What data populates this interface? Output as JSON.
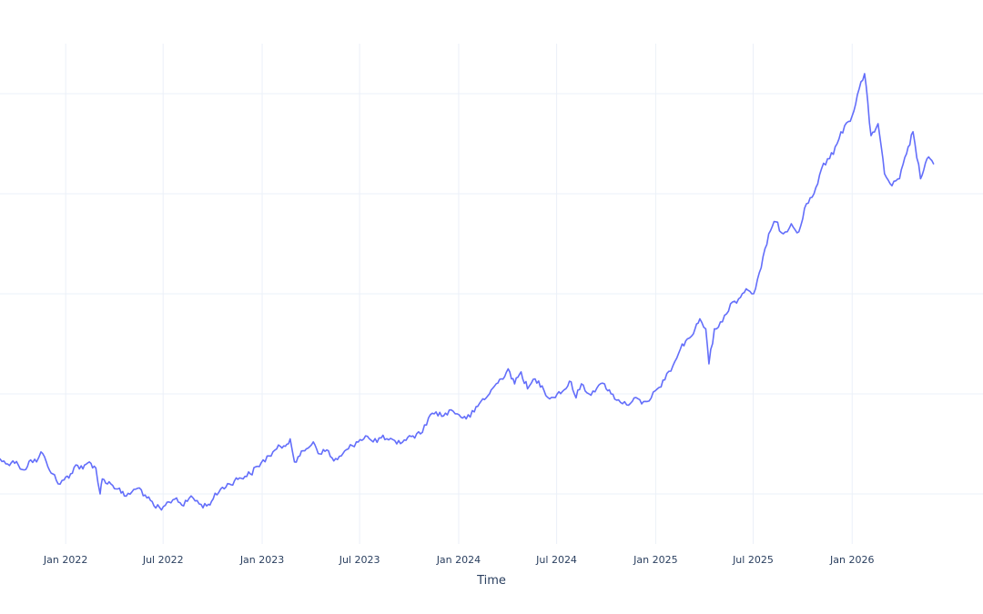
{
  "chart_data": {
    "type": "line",
    "title": "",
    "xlabel": "Time",
    "ylabel": "",
    "x_range": [
      "2021-09-01",
      "2026-09-01"
    ],
    "y_range": [
      -0.5,
      4.5
    ],
    "y_gridlines": [
      0,
      1,
      2,
      3,
      4
    ],
    "x_ticks": [
      {
        "date": "2022-01-01",
        "label": "Jan 2022"
      },
      {
        "date": "2022-07-01",
        "label": "Jul 2022"
      },
      {
        "date": "2023-01-01",
        "label": "Jan 2023"
      },
      {
        "date": "2023-07-01",
        "label": "Jul 2023"
      },
      {
        "date": "2024-01-01",
        "label": "Jan 2024"
      },
      {
        "date": "2024-07-01",
        "label": "Jul 2024"
      },
      {
        "date": "2025-01-01",
        "label": "Jan 2025"
      },
      {
        "date": "2025-07-01",
        "label": "Jul 2025"
      },
      {
        "date": "2026-01-01",
        "label": "Jan 2026"
      }
    ],
    "grid": true,
    "line_color": "#636efa",
    "series": [
      {
        "points": [
          [
            "2021-09-01",
            0.35
          ],
          [
            "2021-09-12",
            0.3
          ],
          [
            "2021-09-25",
            0.33
          ],
          [
            "2021-10-05",
            0.29
          ],
          [
            "2021-10-16",
            0.24
          ],
          [
            "2021-10-28",
            0.34
          ],
          [
            "2021-11-08",
            0.32
          ],
          [
            "2021-11-16",
            0.42
          ],
          [
            "2021-11-26",
            0.32
          ],
          [
            "2021-12-08",
            0.2
          ],
          [
            "2021-12-18",
            0.1
          ],
          [
            "2021-12-29",
            0.14
          ],
          [
            "2022-01-10",
            0.2
          ],
          [
            "2022-01-20",
            0.29
          ],
          [
            "2022-02-02",
            0.25
          ],
          [
            "2022-02-14",
            0.32
          ],
          [
            "2022-02-26",
            0.26
          ],
          [
            "2022-03-06",
            0.0
          ],
          [
            "2022-03-10",
            0.15
          ],
          [
            "2022-03-26",
            0.1
          ],
          [
            "2022-04-08",
            0.05
          ],
          [
            "2022-04-20",
            -0.02
          ],
          [
            "2022-05-04",
            0.02
          ],
          [
            "2022-05-18",
            0.06
          ],
          [
            "2022-06-01",
            -0.04
          ],
          [
            "2022-06-14",
            -0.12
          ],
          [
            "2022-06-28",
            -0.16
          ],
          [
            "2022-07-12",
            -0.08
          ],
          [
            "2022-07-26",
            -0.04
          ],
          [
            "2022-08-08",
            -0.12
          ],
          [
            "2022-08-22",
            -0.02
          ],
          [
            "2022-09-06",
            -0.1
          ],
          [
            "2022-09-20",
            -0.12
          ],
          [
            "2022-10-02",
            -0.05
          ],
          [
            "2022-10-16",
            0.05
          ],
          [
            "2022-11-01",
            0.1
          ],
          [
            "2022-11-20",
            0.16
          ],
          [
            "2022-12-10",
            0.2
          ],
          [
            "2022-12-30",
            0.31
          ],
          [
            "2023-01-14",
            0.38
          ],
          [
            "2023-01-28",
            0.45
          ],
          [
            "2023-02-10",
            0.48
          ],
          [
            "2023-02-22",
            0.55
          ],
          [
            "2023-03-02",
            0.32
          ],
          [
            "2023-03-12",
            0.38
          ],
          [
            "2023-03-24",
            0.45
          ],
          [
            "2023-04-06",
            0.52
          ],
          [
            "2023-04-18",
            0.4
          ],
          [
            "2023-05-01",
            0.44
          ],
          [
            "2023-05-14",
            0.33
          ],
          [
            "2023-05-28",
            0.38
          ],
          [
            "2023-06-10",
            0.45
          ],
          [
            "2023-06-25",
            0.52
          ],
          [
            "2023-07-12",
            0.58
          ],
          [
            "2023-07-26",
            0.52
          ],
          [
            "2023-08-10",
            0.56
          ],
          [
            "2023-08-24",
            0.54
          ],
          [
            "2023-09-08",
            0.5
          ],
          [
            "2023-09-22",
            0.54
          ],
          [
            "2023-10-08",
            0.58
          ],
          [
            "2023-10-22",
            0.6
          ],
          [
            "2023-11-06",
            0.76
          ],
          [
            "2023-11-20",
            0.82
          ],
          [
            "2023-12-04",
            0.78
          ],
          [
            "2023-12-18",
            0.84
          ],
          [
            "2024-01-02",
            0.79
          ],
          [
            "2024-01-15",
            0.75
          ],
          [
            "2024-01-30",
            0.82
          ],
          [
            "2024-02-12",
            0.93
          ],
          [
            "2024-02-24",
            0.98
          ],
          [
            "2024-03-08",
            1.08
          ],
          [
            "2024-03-20",
            1.15
          ],
          [
            "2024-04-02",
            1.25
          ],
          [
            "2024-04-14",
            1.1
          ],
          [
            "2024-04-26",
            1.22
          ],
          [
            "2024-05-08",
            1.05
          ],
          [
            "2024-05-22",
            1.15
          ],
          [
            "2024-06-04",
            1.08
          ],
          [
            "2024-06-18",
            0.95
          ],
          [
            "2024-07-02",
            1.0
          ],
          [
            "2024-07-15",
            1.04
          ],
          [
            "2024-07-28",
            1.12
          ],
          [
            "2024-08-06",
            0.96
          ],
          [
            "2024-08-16",
            1.1
          ],
          [
            "2024-08-30",
            1.0
          ],
          [
            "2024-09-14",
            1.06
          ],
          [
            "2024-09-28",
            1.1
          ],
          [
            "2024-10-10",
            1.0
          ],
          [
            "2024-10-24",
            0.94
          ],
          [
            "2024-11-08",
            0.89
          ],
          [
            "2024-11-22",
            0.96
          ],
          [
            "2024-12-06",
            0.9
          ],
          [
            "2024-12-20",
            0.93
          ],
          [
            "2025-01-04",
            1.05
          ],
          [
            "2025-01-18",
            1.14
          ],
          [
            "2025-02-02",
            1.28
          ],
          [
            "2025-02-16",
            1.45
          ],
          [
            "2025-03-01",
            1.55
          ],
          [
            "2025-03-12",
            1.6
          ],
          [
            "2025-03-24",
            1.75
          ],
          [
            "2025-04-04",
            1.65
          ],
          [
            "2025-04-10",
            1.3
          ],
          [
            "2025-04-20",
            1.65
          ],
          [
            "2025-05-05",
            1.72
          ],
          [
            "2025-05-20",
            1.9
          ],
          [
            "2025-06-04",
            1.95
          ],
          [
            "2025-06-18",
            2.05
          ],
          [
            "2025-07-02",
            2.0
          ],
          [
            "2025-07-16",
            2.26
          ],
          [
            "2025-07-30",
            2.6
          ],
          [
            "2025-08-12",
            2.72
          ],
          [
            "2025-08-26",
            2.6
          ],
          [
            "2025-09-10",
            2.7
          ],
          [
            "2025-09-24",
            2.62
          ],
          [
            "2025-10-08",
            2.9
          ],
          [
            "2025-10-22",
            3.0
          ],
          [
            "2025-11-05",
            3.25
          ],
          [
            "2025-11-20",
            3.35
          ],
          [
            "2025-12-04",
            3.5
          ],
          [
            "2025-12-18",
            3.68
          ],
          [
            "2026-01-01",
            3.78
          ],
          [
            "2026-01-14",
            4.05
          ],
          [
            "2026-01-24",
            4.2
          ],
          [
            "2026-02-05",
            3.58
          ],
          [
            "2026-02-18",
            3.7
          ],
          [
            "2026-03-02",
            3.2
          ],
          [
            "2026-03-16",
            3.08
          ],
          [
            "2026-03-30",
            3.15
          ],
          [
            "2026-04-12",
            3.4
          ],
          [
            "2026-04-24",
            3.62
          ],
          [
            "2026-05-08",
            3.15
          ],
          [
            "2026-05-20",
            3.35
          ],
          [
            "2026-06-01",
            3.3
          ]
        ]
      }
    ]
  }
}
